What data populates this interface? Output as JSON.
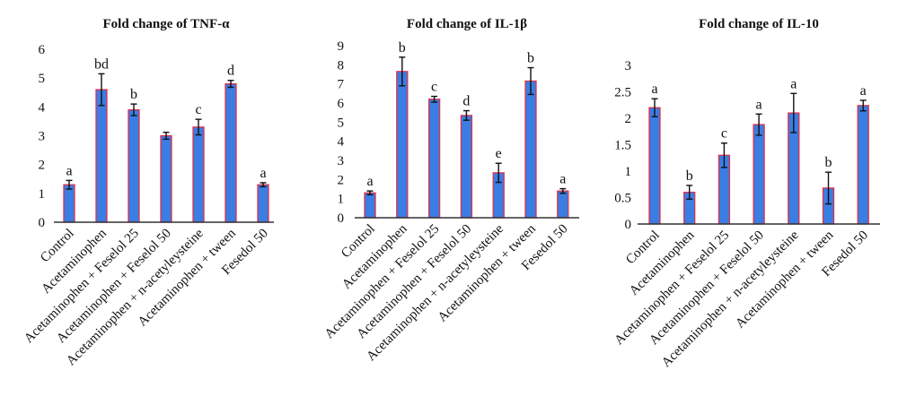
{
  "colors": {
    "bar_fill": "#3a7de3",
    "bar_stroke": "#e0304a",
    "axis": "#333333",
    "error": "#111111"
  },
  "chart_data": [
    {
      "type": "bar",
      "title": "Fold change of TNF-α",
      "categories": [
        "Control",
        "Acetaminophen",
        "Acetaminophen + Feselol 25",
        "Acetaminophen + Feselol 50",
        "Acetaminophen + n-acetyleysteine",
        "Acetaminophen + tween",
        "Fesedol 50"
      ],
      "values": [
        1.3,
        4.6,
        3.9,
        3.0,
        3.3,
        4.8,
        1.3
      ],
      "errors": [
        0.15,
        0.55,
        0.2,
        0.12,
        0.27,
        0.12,
        0.07
      ],
      "significance": [
        "a",
        "bd",
        "b",
        "",
        "c",
        "d",
        "a"
      ],
      "yticks": [
        "0",
        "1",
        "2",
        "3",
        "4",
        "5",
        "6"
      ],
      "ylim": [
        0,
        6
      ],
      "xlabel": "",
      "ylabel": "",
      "grid": false
    },
    {
      "type": "bar",
      "title": "Fold change of IL-1β",
      "categories": [
        "Control",
        "Acetaminophen",
        "Acetaminophen + Feselol 25",
        "Acetaminophen + Feselol 50",
        "Acetaminophen + n-acetyleysteine",
        "Acetaminophen + tween",
        "Fesedol 50"
      ],
      "values": [
        1.3,
        7.65,
        6.2,
        5.35,
        2.35,
        7.15,
        1.4
      ],
      "errors": [
        0.1,
        0.75,
        0.15,
        0.25,
        0.5,
        0.7,
        0.12
      ],
      "significance": [
        "a",
        "b",
        "c",
        "d",
        "e",
        "b",
        "a"
      ],
      "yticks": [
        "0",
        "1",
        "2",
        "3",
        "4",
        "5",
        "6",
        "7",
        "8",
        "9"
      ],
      "ylim": [
        0,
        9
      ],
      "xlabel": "",
      "ylabel": "",
      "grid": false
    },
    {
      "type": "bar",
      "title": "Fold change of IL-10",
      "categories": [
        "Control",
        "Acetaminophen",
        "Acetaminophen + Feselol 25",
        "Acetaminophen + Feselol 50",
        "Acetaminophen + n-acetyleysteine",
        "Acetaminophen + tween",
        "Fesedol 50"
      ],
      "values": [
        2.2,
        0.6,
        1.3,
        1.88,
        2.1,
        0.68,
        2.24
      ],
      "errors": [
        0.17,
        0.13,
        0.23,
        0.2,
        0.37,
        0.3,
        0.1
      ],
      "significance": [
        "a",
        "b",
        "c",
        "a",
        "a",
        "b",
        "a"
      ],
      "yticks": [
        "0",
        "0.5",
        "1",
        "1.5",
        "2",
        "2.5",
        "3"
      ],
      "ylim": [
        0,
        3
      ],
      "xlabel": "",
      "ylabel": "",
      "grid": false
    }
  ]
}
